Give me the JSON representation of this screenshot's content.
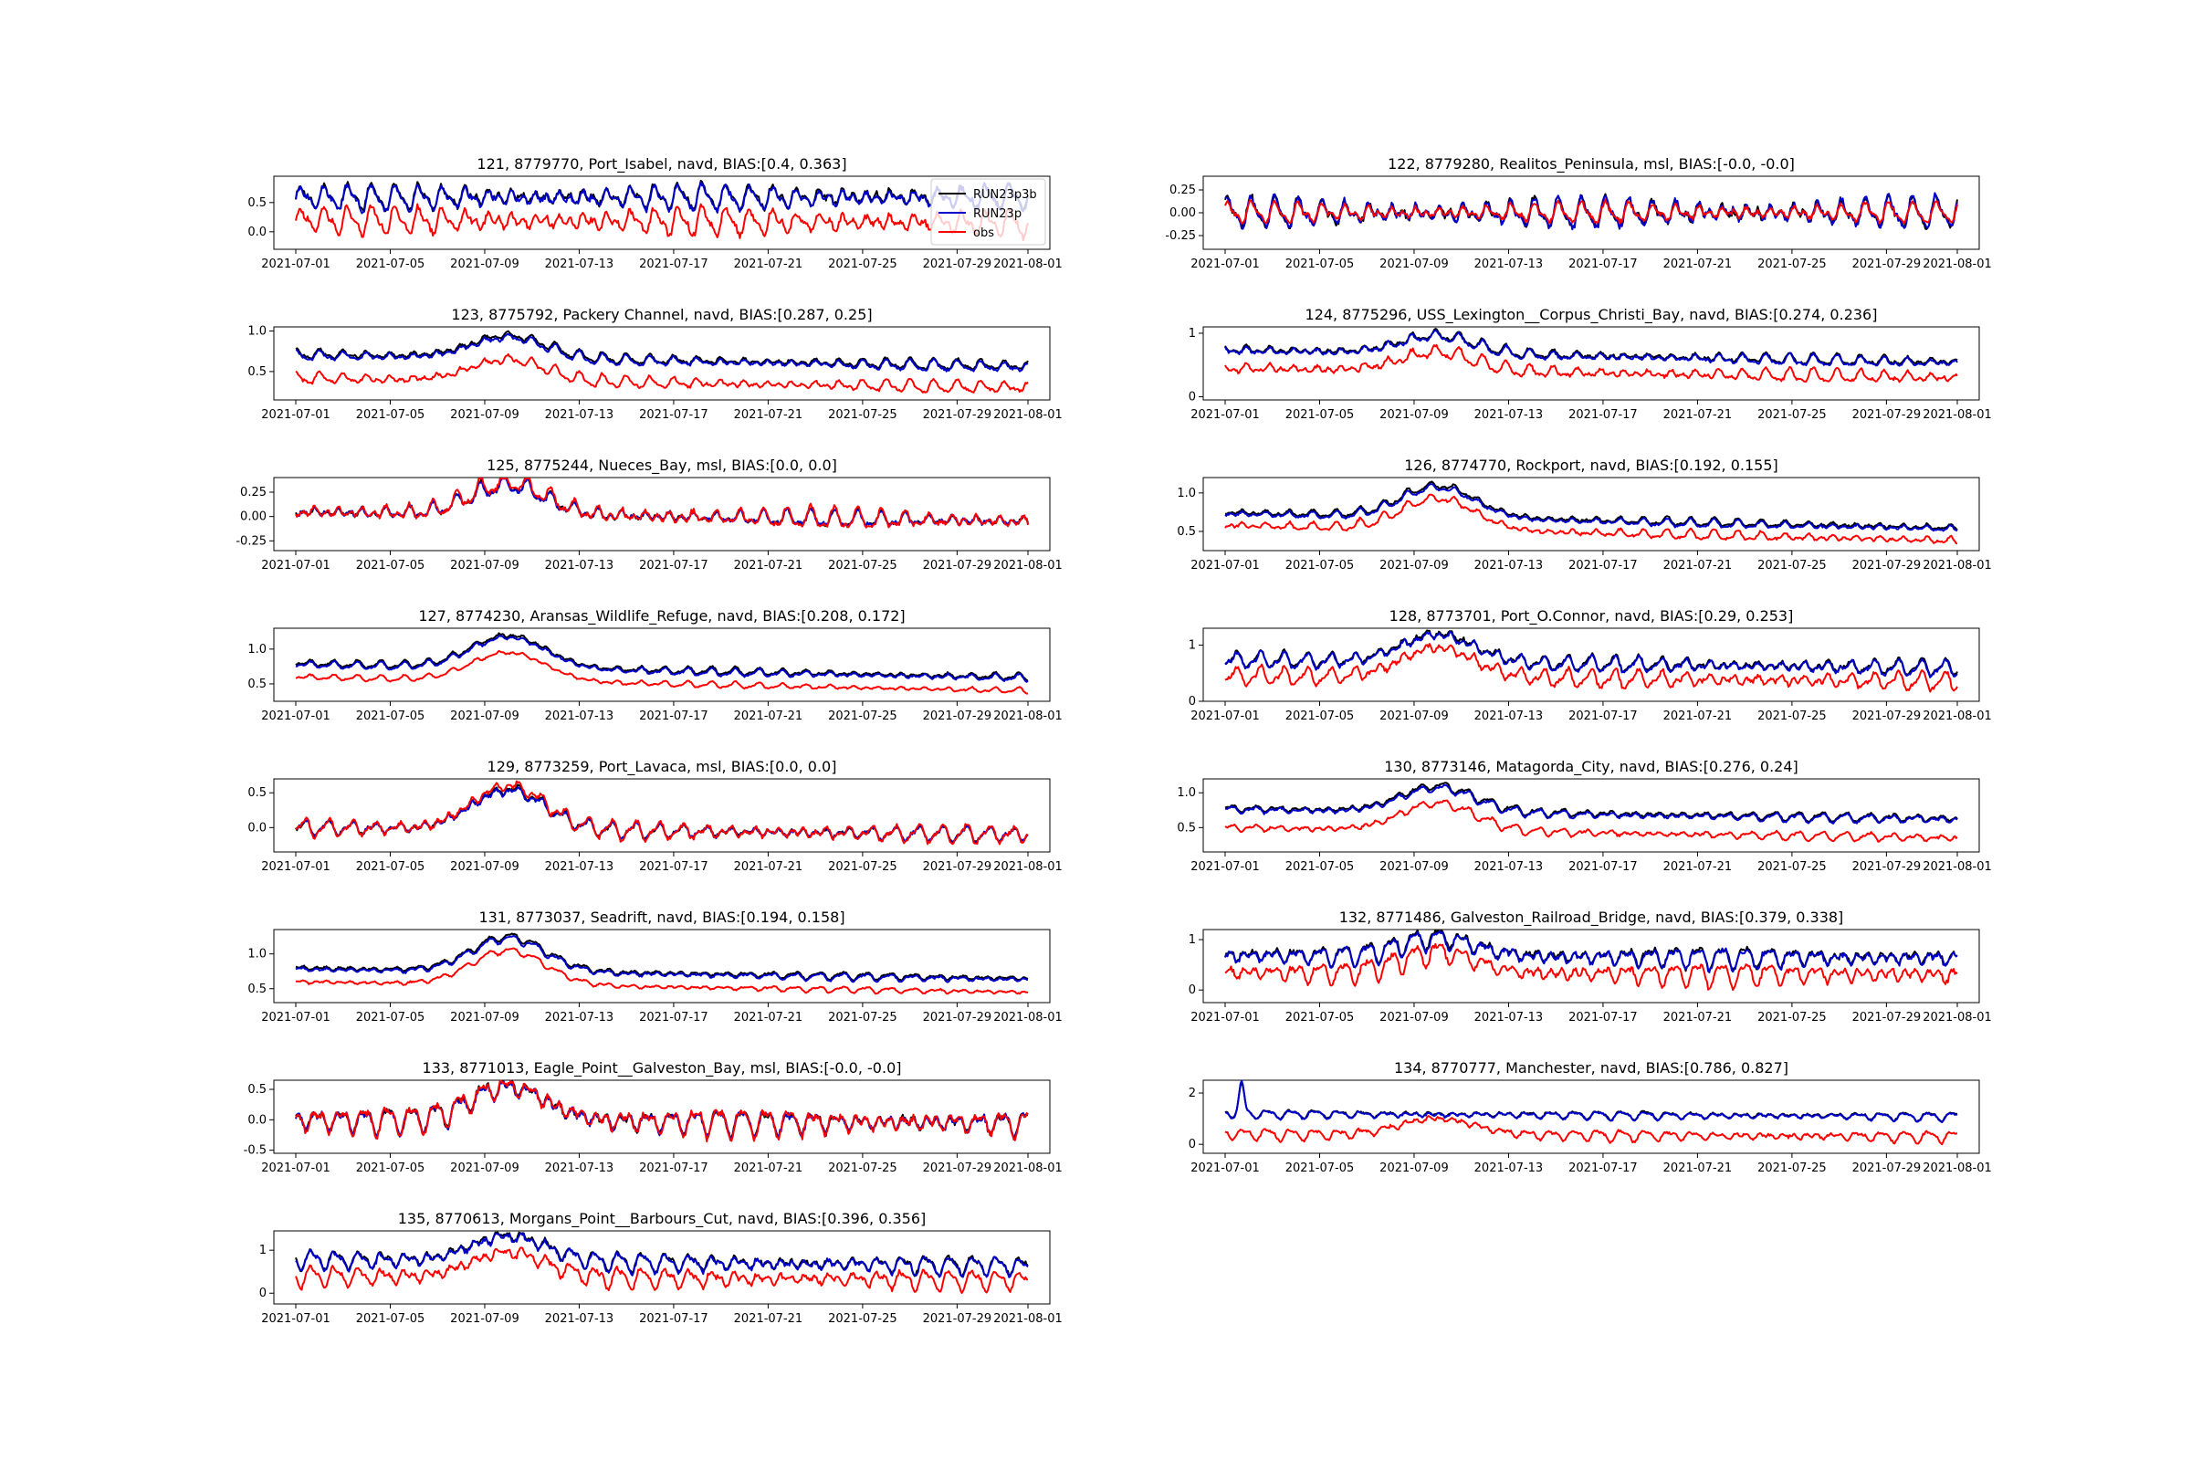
{
  "figure": {
    "dates": [
      "2021-07-01",
      "2021-07-05",
      "2021-07-09",
      "2021-07-13",
      "2021-07-17",
      "2021-07-21",
      "2021-07-25",
      "2021-07-29",
      "2021-08-01"
    ],
    "x_range": [
      "2021-07-01",
      "2021-08-01"
    ]
  },
  "legend": {
    "location": "upper-right of first panel",
    "entries": [
      {
        "label": "RUN23p3b",
        "color": "#000000"
      },
      {
        "label": "RUN23p",
        "color": "#0000cc"
      },
      {
        "label": "obs",
        "color": "#ff0000"
      }
    ]
  },
  "chart_data": [
    {
      "type": "line",
      "title": "121, 8779770, Port_Isabel, navd, BIAS:[0.4, 0.363]",
      "yticks": [
        "0.5",
        "0.0"
      ],
      "ylim": [
        -0.3,
        0.95
      ],
      "tickvals": [
        0.5,
        0.0
      ],
      "series": [
        {
          "name": "RUN23p3b",
          "base": 0.6,
          "amp": 0.2,
          "period": 1.0,
          "trend": 0,
          "spike": null
        },
        {
          "name": "RUN23p",
          "base": 0.58,
          "amp": 0.2,
          "period": 1.0,
          "trend": 0,
          "spike": null
        },
        {
          "name": "obs",
          "base": 0.2,
          "amp": 0.22,
          "period": 1.0,
          "trend": -0.05,
          "spike": null
        }
      ]
    },
    {
      "type": "line",
      "title": "122, 8779280, Realitos_Peninsula, msl, BIAS:[-0.0, -0.0]",
      "yticks": [
        "0.25",
        "0.00",
        "-0.25"
      ],
      "ylim": [
        -0.4,
        0.4
      ],
      "tickvals": [
        0.25,
        0.0,
        -0.25
      ],
      "series": [
        {
          "name": "RUN23p3b",
          "base": 0.0,
          "amp": 0.15,
          "period": 1.0,
          "trend": 0,
          "spike": null
        },
        {
          "name": "RUN23p",
          "base": 0.0,
          "amp": 0.15,
          "period": 1.0,
          "trend": 0,
          "spike": null
        },
        {
          "name": "obs",
          "base": 0.0,
          "amp": 0.1,
          "period": 1.0,
          "trend": 0,
          "spike": null
        }
      ]
    },
    {
      "type": "line",
      "title": "123, 8775792, Packery Channel, navd, BIAS:[0.287, 0.25]",
      "yticks": [
        "1.0",
        "0.5"
      ],
      "ylim": [
        0.15,
        1.05
      ],
      "tickvals": [
        1.0,
        0.5
      ],
      "series": [
        {
          "name": "RUN23p3b",
          "base": 0.72,
          "amp": 0.06,
          "period": 1.0,
          "trend": -0.15,
          "spike": [
            9,
            0.95
          ]
        },
        {
          "name": "RUN23p",
          "base": 0.7,
          "amp": 0.06,
          "period": 1.0,
          "trend": -0.15,
          "spike": [
            9,
            0.92
          ]
        },
        {
          "name": "obs",
          "base": 0.42,
          "amp": 0.07,
          "period": 1.0,
          "trend": -0.12,
          "spike": [
            9,
            0.65
          ]
        }
      ]
    },
    {
      "type": "line",
      "title": "124, 8775296, USS_Lexington__Corpus_Christi_Bay, navd, BIAS:[0.274, 0.236]",
      "yticks": [
        "1",
        "0"
      ],
      "ylim": [
        -0.05,
        1.1
      ],
      "tickvals": [
        1,
        0
      ],
      "series": [
        {
          "name": "RUN23p3b",
          "base": 0.75,
          "amp": 0.08,
          "period": 1.0,
          "trend": -0.2,
          "spike": [
            9,
            0.97
          ]
        },
        {
          "name": "RUN23p",
          "base": 0.73,
          "amp": 0.08,
          "period": 1.0,
          "trend": -0.2,
          "spike": [
            9,
            0.95
          ]
        },
        {
          "name": "obs",
          "base": 0.45,
          "amp": 0.1,
          "period": 1.0,
          "trend": -0.15,
          "spike": [
            9,
            0.7
          ]
        }
      ]
    },
    {
      "type": "line",
      "title": "125, 8775244, Nueces_Bay, msl, BIAS:[0.0, 0.0]",
      "yticks": [
        "0.25",
        "0.00",
        "-0.25"
      ],
      "ylim": [
        -0.35,
        0.4
      ],
      "tickvals": [
        0.25,
        0.0,
        -0.25
      ],
      "series": [
        {
          "name": "RUN23p3b",
          "base": 0.05,
          "amp": 0.08,
          "period": 1.0,
          "trend": -0.1,
          "spike": [
            9,
            0.33
          ]
        },
        {
          "name": "RUN23p",
          "base": 0.05,
          "amp": 0.08,
          "period": 1.0,
          "trend": -0.1,
          "spike": [
            9,
            0.32
          ]
        },
        {
          "name": "obs",
          "base": 0.05,
          "amp": 0.1,
          "period": 1.0,
          "trend": -0.1,
          "spike": [
            9,
            0.36
          ]
        }
      ]
    },
    {
      "type": "line",
      "title": "126, 8774770, Rockport, navd, BIAS:[0.192, 0.155]",
      "yticks": [
        "1.0",
        "0.5"
      ],
      "ylim": [
        0.25,
        1.2
      ],
      "tickvals": [
        1.0,
        0.5
      ],
      "series": [
        {
          "name": "RUN23p3b",
          "base": 0.75,
          "amp": 0.05,
          "period": 1.0,
          "trend": -0.2,
          "spike": [
            9,
            1.1
          ]
        },
        {
          "name": "RUN23p",
          "base": 0.73,
          "amp": 0.05,
          "period": 1.0,
          "trend": -0.2,
          "spike": [
            9,
            1.07
          ]
        },
        {
          "name": "obs",
          "base": 0.58,
          "amp": 0.06,
          "period": 1.0,
          "trend": -0.2,
          "spike": [
            9,
            0.93
          ]
        }
      ]
    },
    {
      "type": "line",
      "title": "127, 8774230, Aransas_Wildlife_Refuge, navd, BIAS:[0.208, 0.172]",
      "yticks": [
        "1.0",
        "0.5"
      ],
      "ylim": [
        0.25,
        1.3
      ],
      "tickvals": [
        1.0,
        0.5
      ],
      "series": [
        {
          "name": "RUN23p3b",
          "base": 0.8,
          "amp": 0.05,
          "period": 1.0,
          "trend": -0.2,
          "spike": [
            9,
            1.2
          ]
        },
        {
          "name": "RUN23p",
          "base": 0.78,
          "amp": 0.05,
          "period": 1.0,
          "trend": -0.2,
          "spike": [
            9,
            1.17
          ]
        },
        {
          "name": "obs",
          "base": 0.6,
          "amp": 0.04,
          "period": 1.0,
          "trend": -0.2,
          "spike": [
            9,
            0.95
          ]
        }
      ]
    },
    {
      "type": "line",
      "title": "128, 8773701, Port_O.Connor, navd, BIAS:[0.29, 0.253]",
      "yticks": [
        "1",
        "0"
      ],
      "ylim": [
        0,
        1.3
      ],
      "tickvals": [
        1,
        0
      ],
      "series": [
        {
          "name": "RUN23p3b",
          "base": 0.75,
          "amp": 0.13,
          "period": 1.0,
          "trend": -0.15,
          "spike": [
            9,
            1.2
          ]
        },
        {
          "name": "RUN23p",
          "base": 0.73,
          "amp": 0.13,
          "period": 1.0,
          "trend": -0.15,
          "spike": [
            9,
            1.17
          ]
        },
        {
          "name": "obs",
          "base": 0.45,
          "amp": 0.15,
          "period": 1.0,
          "trend": -0.1,
          "spike": [
            9,
            0.95
          ]
        }
      ]
    },
    {
      "type": "line",
      "title": "129, 8773259, Port_Lavaca, msl, BIAS:[0.0, 0.0]",
      "yticks": [
        "0.5",
        "0.0"
      ],
      "ylim": [
        -0.35,
        0.7
      ],
      "tickvals": [
        0.5,
        0.0
      ],
      "series": [
        {
          "name": "RUN23p3b",
          "base": 0.0,
          "amp": 0.1,
          "period": 1.0,
          "trend": -0.1,
          "spike": [
            9,
            0.55
          ]
        },
        {
          "name": "RUN23p",
          "base": 0.0,
          "amp": 0.1,
          "period": 1.0,
          "trend": -0.1,
          "spike": [
            9,
            0.53
          ]
        },
        {
          "name": "obs",
          "base": 0.0,
          "amp": 0.12,
          "period": 1.0,
          "trend": -0.1,
          "spike": [
            9,
            0.6
          ]
        }
      ]
    },
    {
      "type": "line",
      "title": "130, 8773146, Matagorda_City, navd, BIAS:[0.276, 0.24]",
      "yticks": [
        "1.0",
        "0.5"
      ],
      "ylim": [
        0.15,
        1.2
      ],
      "tickvals": [
        1.0,
        0.5
      ],
      "series": [
        {
          "name": "RUN23p3b",
          "base": 0.78,
          "amp": 0.06,
          "period": 1.0,
          "trend": -0.15,
          "spike": [
            9,
            1.1
          ]
        },
        {
          "name": "RUN23p",
          "base": 0.76,
          "amp": 0.06,
          "period": 1.0,
          "trend": -0.15,
          "spike": [
            9,
            1.07
          ]
        },
        {
          "name": "obs",
          "base": 0.5,
          "amp": 0.06,
          "period": 1.0,
          "trend": -0.15,
          "spike": [
            9,
            0.85
          ]
        }
      ]
    },
    {
      "type": "line",
      "title": "131, 8773037, Seadrift, navd, BIAS:[0.194, 0.158]",
      "yticks": [
        "1.0",
        "0.5"
      ],
      "ylim": [
        0.3,
        1.35
      ],
      "tickvals": [
        1.0,
        0.5
      ],
      "series": [
        {
          "name": "RUN23p3b",
          "base": 0.8,
          "amp": 0.05,
          "period": 1.0,
          "trend": -0.15,
          "spike": [
            9,
            1.25
          ]
        },
        {
          "name": "RUN23p",
          "base": 0.78,
          "amp": 0.05,
          "period": 1.0,
          "trend": -0.15,
          "spike": [
            9,
            1.22
          ]
        },
        {
          "name": "obs",
          "base": 0.6,
          "amp": 0.04,
          "period": 1.0,
          "trend": -0.15,
          "spike": [
            9,
            1.05
          ]
        }
      ]
    },
    {
      "type": "line",
      "title": "132, 8771486, Galveston_Railroad_Bridge, navd, BIAS:[0.379, 0.338]",
      "yticks": [
        "1",
        "0"
      ],
      "ylim": [
        -0.25,
        1.2
      ],
      "tickvals": [
        1,
        0
      ],
      "series": [
        {
          "name": "RUN23p3b",
          "base": 0.7,
          "amp": 0.2,
          "period": 1.0,
          "trend": -0.05,
          "spike": [
            9,
            1.05
          ]
        },
        {
          "name": "RUN23p",
          "base": 0.68,
          "amp": 0.2,
          "period": 1.0,
          "trend": -0.05,
          "spike": [
            9,
            1.02
          ]
        },
        {
          "name": "obs",
          "base": 0.35,
          "amp": 0.22,
          "period": 1.0,
          "trend": -0.05,
          "spike": [
            9,
            0.75
          ]
        }
      ]
    },
    {
      "type": "line",
      "title": "133, 8771013, Eagle_Point__Galveston_Bay, msl, BIAS:[-0.0, -0.0]",
      "yticks": [
        "0.5",
        "0.0",
        "-0.5"
      ],
      "ylim": [
        -0.55,
        0.65
      ],
      "tickvals": [
        0.5,
        0.0,
        -0.5
      ],
      "series": [
        {
          "name": "RUN23p3b",
          "base": 0.0,
          "amp": 0.2,
          "period": 1.0,
          "trend": -0.05,
          "spike": [
            9,
            0.55
          ]
        },
        {
          "name": "RUN23p",
          "base": 0.0,
          "amp": 0.2,
          "period": 1.0,
          "trend": -0.05,
          "spike": [
            9,
            0.53
          ]
        },
        {
          "name": "obs",
          "base": 0.0,
          "amp": 0.22,
          "period": 1.0,
          "trend": -0.05,
          "spike": [
            9,
            0.55
          ]
        }
      ]
    },
    {
      "type": "line",
      "title": "134, 8770777, Manchester, navd, BIAS:[0.786, 0.827]",
      "yticks": [
        "2",
        "0"
      ],
      "ylim": [
        -0.35,
        2.5
      ],
      "tickvals": [
        2,
        0
      ],
      "series": [
        {
          "name": "RUN23p3b",
          "base": 1.2,
          "amp": 0.15,
          "period": 1.0,
          "trend": -0.1,
          "spike": [
            0.7,
            2.3
          ]
        },
        {
          "name": "RUN23p",
          "base": 1.18,
          "amp": 0.15,
          "period": 1.0,
          "trend": -0.1,
          "spike": [
            0.7,
            2.35
          ]
        },
        {
          "name": "obs",
          "base": 0.4,
          "amp": 0.2,
          "period": 1.0,
          "trend": -0.1,
          "spike": [
            9,
            1.0
          ]
        }
      ]
    },
    {
      "type": "line",
      "title": "135, 8770613, Morgans_Point__Barbours_Cut, navd, BIAS:[0.396, 0.356]",
      "yticks": [
        "1",
        "0"
      ],
      "ylim": [
        -0.25,
        1.45
      ],
      "tickvals": [
        1,
        0
      ],
      "series": [
        {
          "name": "RUN23p3b",
          "base": 0.8,
          "amp": 0.2,
          "period": 1.0,
          "trend": -0.15,
          "spike": [
            9,
            1.35
          ]
        },
        {
          "name": "RUN23p",
          "base": 0.78,
          "amp": 0.2,
          "period": 1.0,
          "trend": -0.15,
          "spike": [
            9,
            1.32
          ]
        },
        {
          "name": "obs",
          "base": 0.4,
          "amp": 0.22,
          "period": 1.0,
          "trend": -0.1,
          "spike": [
            9,
            0.95
          ]
        }
      ]
    }
  ]
}
